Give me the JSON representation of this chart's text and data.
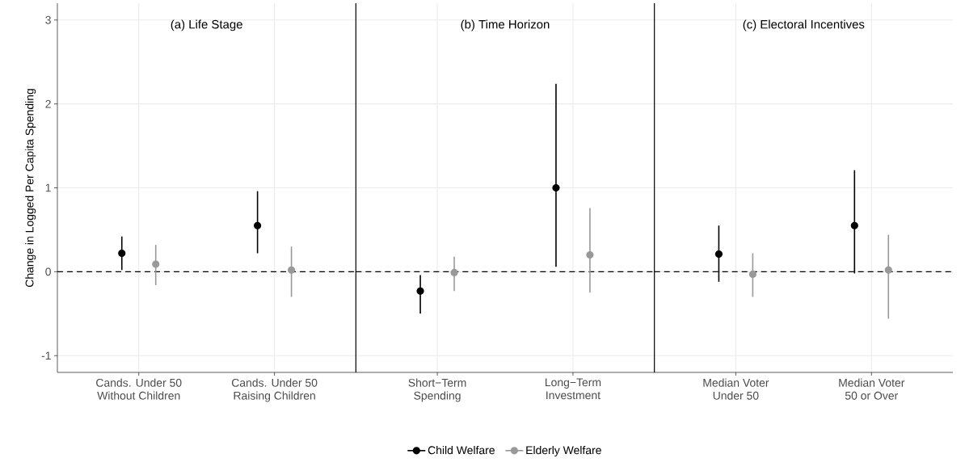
{
  "chart_data": [
    {
      "type": "scatter",
      "title": "(a) Life Stage",
      "ylabel": "Change in Logged Per Capita Spending",
      "categories": [
        "Cands. Under 50\nWithout Children",
        "Cands. Under 50\nRaising Children"
      ],
      "ylim": [
        -1.2,
        3.2
      ],
      "yticks": [
        -1,
        0,
        1,
        2,
        3
      ],
      "grid": true,
      "marker": "circle",
      "legend": "bottom",
      "series": [
        {
          "name": "Child Welfare",
          "color": "#000000",
          "values": [
            0.22,
            0.55
          ],
          "errors": [
            [
              0.02,
              0.42
            ],
            [
              0.22,
              0.96
            ]
          ]
        },
        {
          "name": "Elderly Welfare",
          "color": "#999999",
          "values": [
            0.09,
            0.02
          ],
          "errors": [
            [
              -0.16,
              0.32
            ],
            [
              -0.3,
              0.3
            ]
          ]
        }
      ],
      "ref_lines": [
        {
          "axis": "y",
          "value": 0,
          "color": "#000000",
          "line_style": "dashed"
        }
      ]
    },
    {
      "type": "scatter",
      "title": "(b) Time Horizon",
      "tick_labels": "x",
      "categories": [
        "Short−Term\nSpending",
        "Long−Term\nInvestment"
      ],
      "ylim": [
        -1.2,
        3.2
      ],
      "yticks": [
        -1,
        0,
        1,
        2,
        3
      ],
      "grid": true,
      "marker": "circle",
      "series": [
        {
          "color": "#000000",
          "values": [
            -0.23,
            1.0
          ],
          "errors": [
            [
              -0.5,
              -0.04
            ],
            [
              0.06,
              2.24
            ]
          ]
        },
        {
          "color": "#999999",
          "values": [
            -0.01,
            0.2
          ],
          "errors": [
            [
              -0.23,
              0.18
            ],
            [
              -0.25,
              0.76
            ]
          ]
        }
      ],
      "ref_lines": [
        {
          "axis": "y",
          "value": 0,
          "color": "#000000",
          "line_style": "dashed"
        }
      ]
    },
    {
      "type": "scatter",
      "title": "(c) Electoral Incentives",
      "tick_labels": "x",
      "categories": [
        "Median Voter\nUnder 50",
        "Median Voter\n50 or Over"
      ],
      "ylim": [
        -1.2,
        3.2
      ],
      "yticks": [
        -1,
        0,
        1,
        2,
        3
      ],
      "grid": true,
      "marker": "circle",
      "series": [
        {
          "color": "#000000",
          "values": [
            0.21,
            0.55
          ],
          "errors": [
            [
              -0.12,
              0.55
            ],
            [
              -0.02,
              1.21
            ]
          ]
        },
        {
          "color": "#999999",
          "values": [
            -0.03,
            0.02
          ],
          "errors": [
            [
              -0.3,
              0.22
            ],
            [
              -0.56,
              0.44
            ]
          ]
        }
      ],
      "ref_lines": [
        {
          "axis": "y",
          "value": 0,
          "color": "#000000",
          "line_style": "dashed"
        }
      ]
    }
  ]
}
